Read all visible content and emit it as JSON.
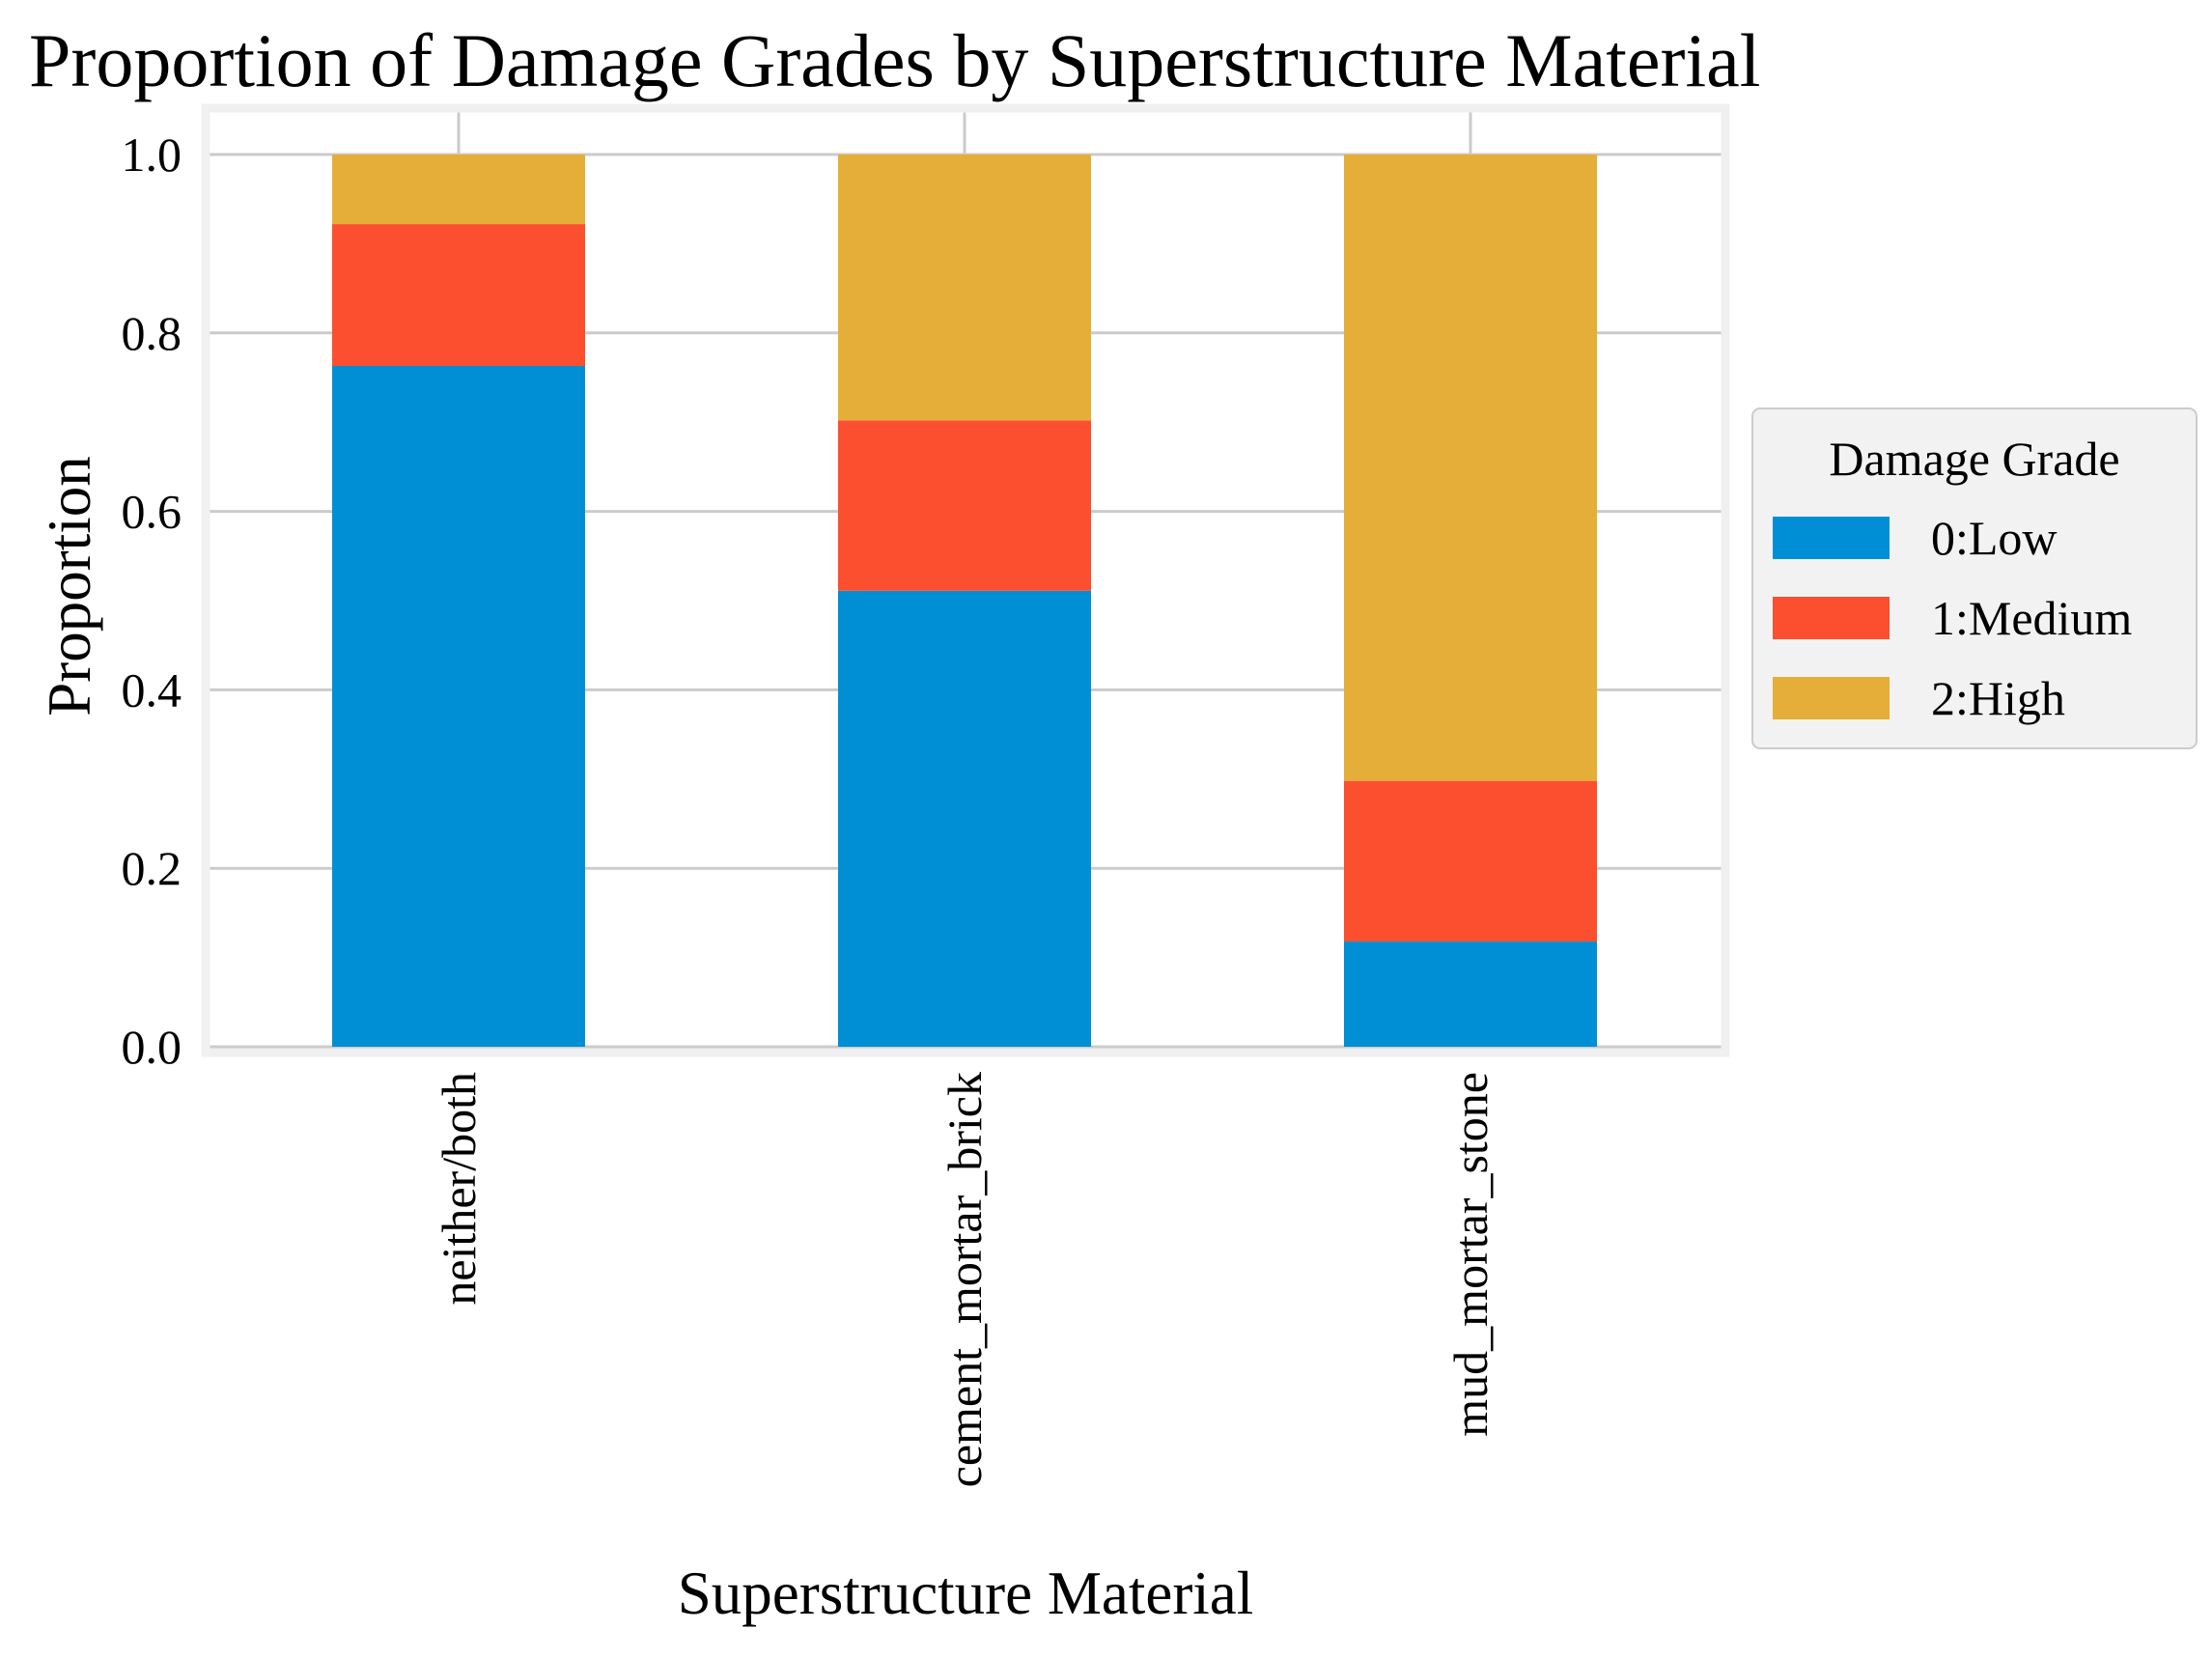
{
  "chart_data": {
    "type": "bar",
    "stacked": true,
    "title": "Proportion of Damage Grades by Superstructure Material",
    "xlabel": "Superstructure Material",
    "ylabel": "Proportion",
    "ylim": [
      0,
      1.05
    ],
    "y_ticks": [
      "0.0",
      "0.2",
      "0.4",
      "0.6",
      "0.8",
      "1.0"
    ],
    "y_tick_values": [
      0,
      0.2,
      0.4,
      0.6,
      0.8,
      1.0
    ],
    "categories": [
      "neither/both",
      "cement_mortar_brick",
      "mud_mortar_stone"
    ],
    "x_tick_labels": [
      "neither/both",
      "cement_mortar_brick",
      "mud_mortar_stone"
    ],
    "grid": true,
    "legend": {
      "title": "Damage Grade",
      "placement": "right"
    },
    "series": [
      {
        "name": "0:Low",
        "color": "#008fd5",
        "values": [
          0.763,
          0.511,
          0.118
        ]
      },
      {
        "name": "1:Medium",
        "color": "#fc4f30",
        "values": [
          0.159,
          0.191,
          0.18
        ]
      },
      {
        "name": "2:High",
        "color": "#e5ae38",
        "values": [
          0.078,
          0.298,
          0.702
        ]
      }
    ]
  }
}
